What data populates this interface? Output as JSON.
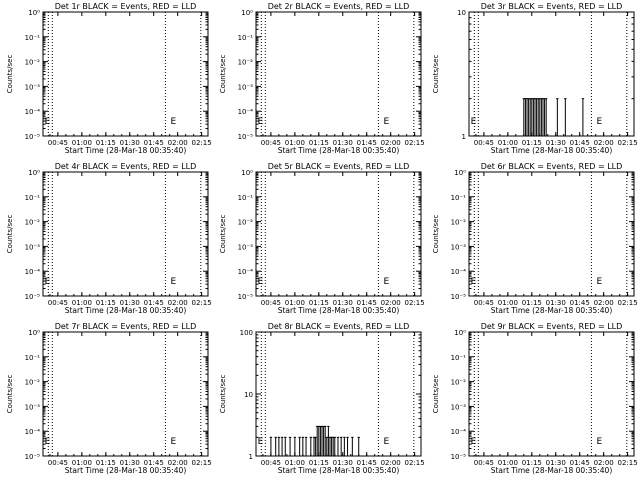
{
  "x_ticks": [
    "00:45",
    "01:00",
    "01:15",
    "01:30",
    "01:45",
    "02:00",
    "02:15"
  ],
  "xlabel": "Start Time (28-Mar-18 00:35:40)",
  "ylabel": "Counts/sec",
  "event_marker": "E",
  "colors": {
    "events": "#000000",
    "lld": "#ff0000",
    "axes": "#000000"
  },
  "chart_data": [
    {
      "type": "line",
      "title": "Det 1r BLACK = Events, RED = LLD",
      "xlim": [
        "00:35:40",
        "02:19:00"
      ],
      "y_scale": "log",
      "ylim": [
        1e-05,
        1
      ],
      "ytick_labels": [
        "10⁰",
        "10⁻¹",
        "10⁻²",
        "10⁻³",
        "10⁻⁴",
        "10⁻⁵"
      ],
      "vlines": [
        "00:39:00",
        "00:41:30",
        "01:52:20",
        "02:14:30"
      ],
      "event_marks": [
        "00:36:40",
        "01:55:30"
      ],
      "series": []
    },
    {
      "type": "line",
      "title": "Det 2r BLACK = Events, RED = LLD",
      "xlim": [
        "00:35:40",
        "02:19:00"
      ],
      "y_scale": "log",
      "ylim": [
        1e-05,
        1
      ],
      "ytick_labels": [
        "10⁰",
        "10⁻¹",
        "10⁻²",
        "10⁻³",
        "10⁻⁴",
        "10⁻⁵"
      ],
      "vlines": [
        "00:39:00",
        "00:41:30",
        "01:52:20",
        "02:14:30"
      ],
      "event_marks": [
        "00:36:40",
        "01:55:30"
      ],
      "series": []
    },
    {
      "type": "line",
      "title": "Det 3r BLACK = Events, RED = LLD",
      "xlim": [
        "00:35:40",
        "02:19:00"
      ],
      "y_scale": "log",
      "ylim": [
        1,
        10
      ],
      "ytick_labels": [
        "1",
        "10"
      ],
      "vlines": [
        "00:39:00",
        "00:41:30",
        "01:52:20",
        "02:14:30"
      ],
      "event_marks": [
        "00:36:40",
        "01:55:30"
      ],
      "series": [
        {
          "x": [
            "01:10:00",
            "01:11:00",
            "01:12:00",
            "01:13:00",
            "01:14:00",
            "01:15:00",
            "01:16:00",
            "01:17:00",
            "01:18:00",
            "01:19:00",
            "01:20:00",
            "01:21:00",
            "01:22:00",
            "01:23:00",
            "01:24:00",
            "01:31:00",
            "01:36:00",
            "01:47:00"
          ],
          "y": [
            2,
            2,
            2,
            2,
            2,
            2,
            2,
            2,
            2,
            2,
            2,
            2,
            2,
            2,
            2,
            2,
            2,
            2
          ]
        }
      ]
    },
    {
      "type": "line",
      "title": "Det 4r BLACK = Events, RED = LLD",
      "xlim": [
        "00:35:40",
        "02:19:00"
      ],
      "y_scale": "log",
      "ylim": [
        1e-05,
        1
      ],
      "ytick_labels": [
        "10⁰",
        "10⁻¹",
        "10⁻²",
        "10⁻³",
        "10⁻⁴",
        "10⁻⁵"
      ],
      "vlines": [
        "00:39:00",
        "00:41:30",
        "01:52:20",
        "02:14:30"
      ],
      "event_marks": [
        "00:36:40",
        "01:55:30"
      ],
      "series": []
    },
    {
      "type": "line",
      "title": "Det 5r BLACK = Events, RED = LLD",
      "xlim": [
        "00:35:40",
        "02:19:00"
      ],
      "y_scale": "log",
      "ylim": [
        1e-05,
        1
      ],
      "ytick_labels": [
        "10⁰",
        "10⁻¹",
        "10⁻²",
        "10⁻³",
        "10⁻⁴",
        "10⁻⁵"
      ],
      "vlines": [
        "00:39:00",
        "00:41:30",
        "01:52:20",
        "02:14:30"
      ],
      "event_marks": [
        "00:36:40",
        "01:55:30"
      ],
      "series": []
    },
    {
      "type": "line",
      "title": "Det 6r BLACK = Events, RED = LLD",
      "xlim": [
        "00:35:40",
        "02:19:00"
      ],
      "y_scale": "log",
      "ylim": [
        1e-05,
        1
      ],
      "ytick_labels": [
        "10⁰",
        "10⁻¹",
        "10⁻²",
        "10⁻³",
        "10⁻⁴",
        "10⁻⁵"
      ],
      "vlines": [
        "00:39:00",
        "00:41:30",
        "01:52:20",
        "02:14:30"
      ],
      "event_marks": [
        "00:36:40",
        "01:55:30"
      ],
      "series": []
    },
    {
      "type": "line",
      "title": "Det 7r BLACK = Events, RED = LLD",
      "xlim": [
        "00:35:40",
        "02:19:00"
      ],
      "y_scale": "log",
      "ylim": [
        1e-05,
        1
      ],
      "ytick_labels": [
        "10⁰",
        "10⁻¹",
        "10⁻²",
        "10⁻³",
        "10⁻⁴",
        "10⁻⁵"
      ],
      "vlines": [
        "00:39:00",
        "00:41:30",
        "01:52:20",
        "02:14:30"
      ],
      "event_marks": [
        "00:36:40",
        "01:55:30"
      ],
      "series": []
    },
    {
      "type": "line",
      "title": "Det 8r BLACK = Events, RED = LLD",
      "xlim": [
        "00:35:40",
        "02:19:00"
      ],
      "y_scale": "log",
      "ylim": [
        1,
        100
      ],
      "ytick_labels": [
        "1",
        "10",
        "100"
      ],
      "vlines": [
        "00:39:00",
        "00:41:30",
        "01:52:20",
        "02:14:30"
      ],
      "event_marks": [
        "00:36:40",
        "01:55:30"
      ],
      "series": [
        {
          "x": [
            "00:45:00",
            "00:48:00",
            "00:50:00",
            "00:52:00",
            "00:54:00",
            "00:57:00",
            "01:00:00",
            "01:03:00",
            "01:05:00",
            "01:07:00",
            "01:10:00",
            "01:12:00",
            "01:13:00",
            "01:14:00",
            "01:15:00",
            "01:16:00",
            "01:17:00",
            "01:18:00",
            "01:19:00",
            "01:20:00",
            "01:21:00",
            "01:22:00",
            "01:23:00",
            "01:24:00",
            "01:25:00",
            "01:27:00",
            "01:29:00",
            "01:31:00",
            "01:33:00",
            "01:36:00",
            "01:40:00"
          ],
          "y": [
            2,
            2,
            2,
            2,
            2,
            2,
            2,
            2,
            2,
            2,
            2,
            2,
            2,
            3,
            3,
            3,
            3,
            3,
            3,
            2,
            3,
            2,
            2,
            2,
            2,
            2,
            2,
            2,
            2,
            2,
            2
          ]
        }
      ]
    },
    {
      "type": "line",
      "title": "Det 9r BLACK = Events, RED = LLD",
      "xlim": [
        "00:35:40",
        "02:19:00"
      ],
      "y_scale": "log",
      "ylim": [
        1e-05,
        1
      ],
      "ytick_labels": [
        "10⁰",
        "10⁻¹",
        "10⁻²",
        "10⁻³",
        "10⁻⁴",
        "10⁻⁵"
      ],
      "vlines": [
        "00:39:00",
        "00:41:30",
        "01:52:20",
        "02:14:30"
      ],
      "event_marks": [
        "00:36:40",
        "01:55:30"
      ],
      "series": []
    }
  ]
}
